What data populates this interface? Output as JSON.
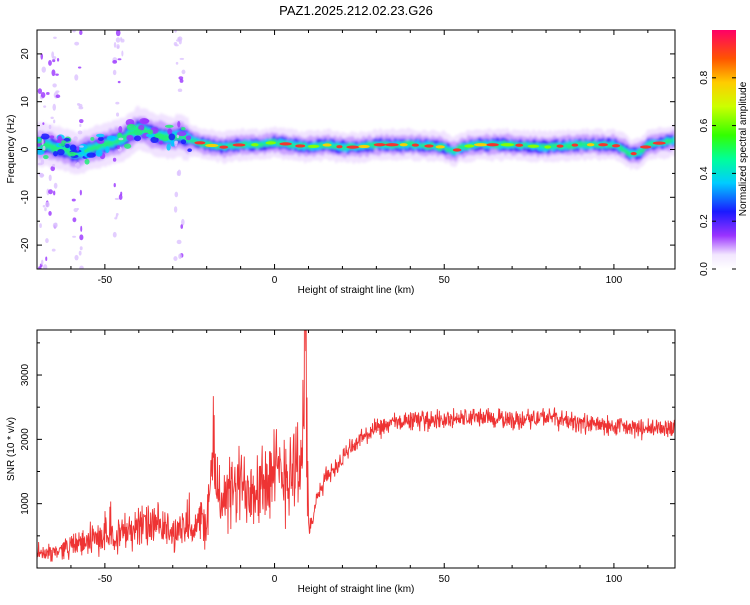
{
  "title": "PAZ1.2025.212.02.23.G26",
  "chart_data": [
    {
      "type": "heatmap",
      "xlabel": "Height of straight line (km)",
      "ylabel": "Frequency (Hz)",
      "xlim": [
        -70,
        118
      ],
      "ylim": [
        -25,
        25
      ],
      "xticks": [
        -50,
        0,
        50,
        100
      ],
      "yticks": [
        20,
        10,
        0,
        -10,
        -20
      ],
      "colorbar": {
        "label": "Normalized spectral amplitude",
        "range": [
          0,
          1
        ],
        "ticks": [
          "0.0",
          "0.2",
          "0.4",
          "0.6",
          "0.8"
        ]
      },
      "ridge": {
        "description_values_x_km": [
          -68,
          -62,
          -58,
          -55,
          -50,
          -45,
          -40,
          -35,
          -30,
          -28,
          -25,
          -20,
          -15,
          -10,
          -5,
          0,
          5,
          10,
          15,
          20,
          25,
          30,
          40,
          50,
          53,
          55,
          60,
          70,
          80,
          90,
          100,
          103,
          105,
          108,
          110,
          115,
          118
        ],
        "frequency_hz": [
          1.0,
          0.0,
          -1.0,
          0.0,
          1.0,
          2.0,
          4.5,
          3.0,
          2.5,
          3.0,
          2.0,
          1.0,
          0.5,
          1.0,
          1.0,
          1.5,
          1.0,
          0.5,
          1.0,
          0.5,
          0.5,
          1.0,
          1.0,
          0.5,
          -0.5,
          0.5,
          1.0,
          1.0,
          0.5,
          1.0,
          1.0,
          0.0,
          -1.0,
          -0.5,
          1.0,
          1.5,
          2.0
        ]
      }
    },
    {
      "type": "line",
      "xlabel": "Height of straight line (km)",
      "ylabel": "SNR (10 * v/v)",
      "xlim": [
        -70,
        118
      ],
      "ylim": [
        0,
        3700
      ],
      "xticks": [
        -50,
        0,
        50,
        100
      ],
      "yticks": [
        1000,
        2000,
        3000
      ],
      "color": "#ee3333",
      "series": [
        {
          "x": [
            -70,
            -65,
            -60,
            -55,
            -50,
            -45,
            -40,
            -35,
            -30,
            -25,
            -20,
            -18,
            -17,
            -15,
            -12,
            -10,
            -5,
            0,
            3,
            6,
            8,
            9,
            10,
            11,
            12,
            15,
            20,
            25,
            30,
            35,
            40,
            50,
            60,
            70,
            80,
            90,
            100,
            110,
            118
          ],
          "y": [
            200,
            250,
            350,
            400,
            500,
            550,
            650,
            650,
            550,
            600,
            750,
            1700,
            1400,
            1000,
            1200,
            1250,
            1350,
            1400,
            1500,
            1600,
            1700,
            3700,
            700,
            600,
            1000,
            1400,
            1700,
            2000,
            2150,
            2250,
            2300,
            2300,
            2350,
            2300,
            2350,
            2250,
            2200,
            2150,
            2200
          ]
        }
      ]
    }
  ]
}
